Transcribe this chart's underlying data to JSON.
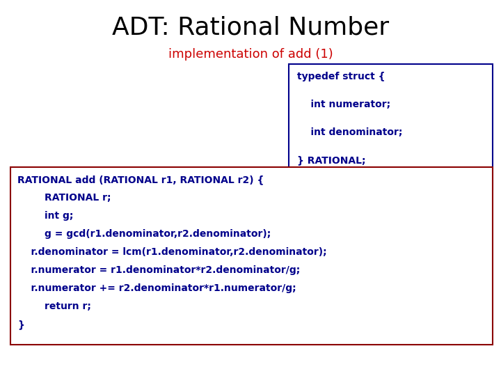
{
  "title": "ADT: Rational Number",
  "subtitle": "implementation of add (1)",
  "title_color": "#000000",
  "subtitle_color": "#cc0000",
  "code_color": "#00008B",
  "bg_color": "#ffffff",
  "box_edge_color": "#8B0000",
  "typedef_box_edge_color": "#00008B",
  "typedef_lines": [
    "typedef struct {",
    "    int numerator;",
    "    int denominator;",
    "} RATIONAL;"
  ],
  "main_lines": [
    "RATIONAL add (RATIONAL r1, RATIONAL r2) {",
    "        RATIONAL r;",
    "        int g;",
    "        g = gcd(r1.denominator,r2.denominator);",
    "    r.denominator = lcm(r1.denominator,r2.denominator);",
    "    r.numerator = r1.denominator*r2.denominator/g;",
    "    r.numerator += r2.denominator*r1.numerator/g;",
    "        return r;",
    "}"
  ],
  "title_fontsize": 26,
  "subtitle_fontsize": 13,
  "code_fontsize": 10,
  "typedef_code_fontsize": 10
}
